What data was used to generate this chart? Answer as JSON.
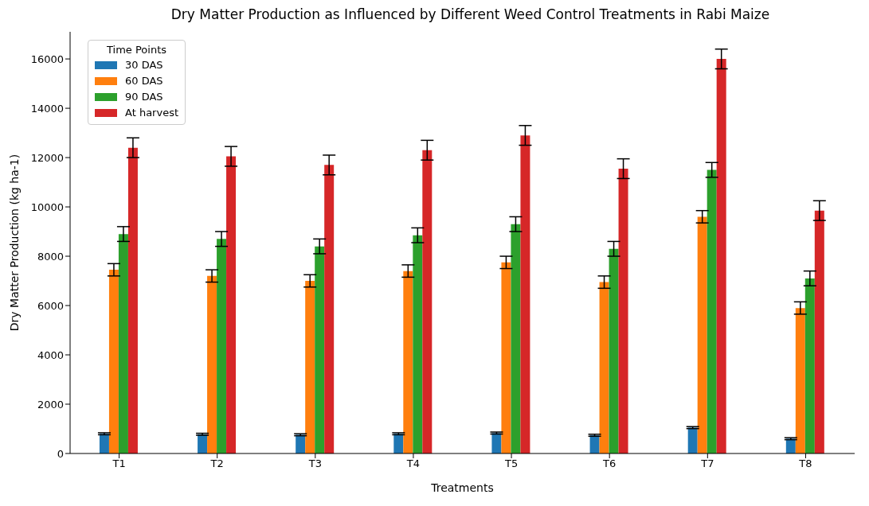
{
  "chart_data": {
    "type": "bar",
    "title": "Dry Matter Production as Influenced by Different Weed Control Treatments in Rabi Maize",
    "xlabel": "Treatments",
    "ylabel": "Dry Matter Production (kg ha-1)",
    "legend_title": "Time Points",
    "categories": [
      "T1",
      "T2",
      "T3",
      "T4",
      "T5",
      "T6",
      "T7",
      "T8"
    ],
    "series": [
      {
        "name": "30 DAS",
        "color": "#1f77b4",
        "values": [
          800,
          780,
          760,
          800,
          830,
          740,
          1050,
          600
        ],
        "errors": [
          40,
          40,
          40,
          40,
          40,
          40,
          40,
          40
        ]
      },
      {
        "name": "60 DAS",
        "color": "#ff7f0e",
        "values": [
          7450,
          7200,
          7000,
          7400,
          7750,
          6950,
          9600,
          5900
        ],
        "errors": [
          250,
          250,
          250,
          250,
          250,
          250,
          250,
          250
        ]
      },
      {
        "name": "90 DAS",
        "color": "#2ca02c",
        "values": [
          8900,
          8700,
          8400,
          8850,
          9300,
          8300,
          11500,
          7100
        ],
        "errors": [
          300,
          300,
          300,
          300,
          300,
          300,
          300,
          300
        ]
      },
      {
        "name": "At harvest",
        "color": "#d62728",
        "values": [
          12400,
          12050,
          11700,
          12300,
          12900,
          11550,
          16000,
          9850
        ],
        "errors": [
          400,
          400,
          400,
          400,
          400,
          400,
          400,
          400
        ]
      }
    ],
    "ylim": [
      0,
      17100
    ],
    "yticks": [
      0,
      2000,
      4000,
      6000,
      8000,
      10000,
      12000,
      14000,
      16000
    ],
    "grid": false,
    "legend": "top left"
  }
}
